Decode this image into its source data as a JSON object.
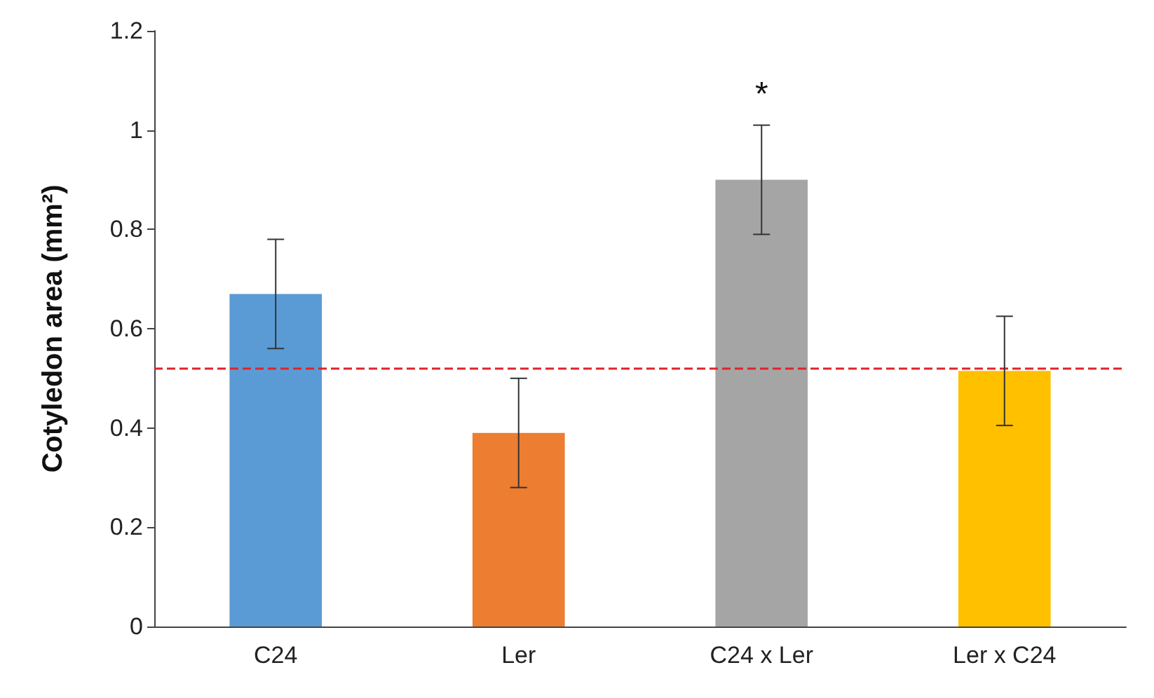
{
  "chart_data": {
    "type": "bar",
    "ylabel": "Cotyledon area (mm²)",
    "categories": [
      "C24",
      "Ler",
      "C24 x Ler",
      "Ler x C24"
    ],
    "values": [
      0.67,
      0.39,
      0.9,
      0.515
    ],
    "errors": [
      0.11,
      0.11,
      0.11,
      0.11
    ],
    "colors": [
      "#5b9bd5",
      "#ed7d31",
      "#a5a5a5",
      "#ffc000"
    ],
    "ylim": [
      0,
      1.2
    ],
    "yticks": [
      0,
      0.2,
      0.4,
      0.6,
      0.8,
      1,
      1.2
    ],
    "grid": false,
    "ref_lines": [
      {
        "axis": "y",
        "value": 0.52,
        "label": null,
        "color": "#e0242a",
        "line_style": "dashed"
      }
    ],
    "annotations": [
      {
        "text": "*",
        "x": "C24 x Ler",
        "y": 1.01
      }
    ]
  }
}
